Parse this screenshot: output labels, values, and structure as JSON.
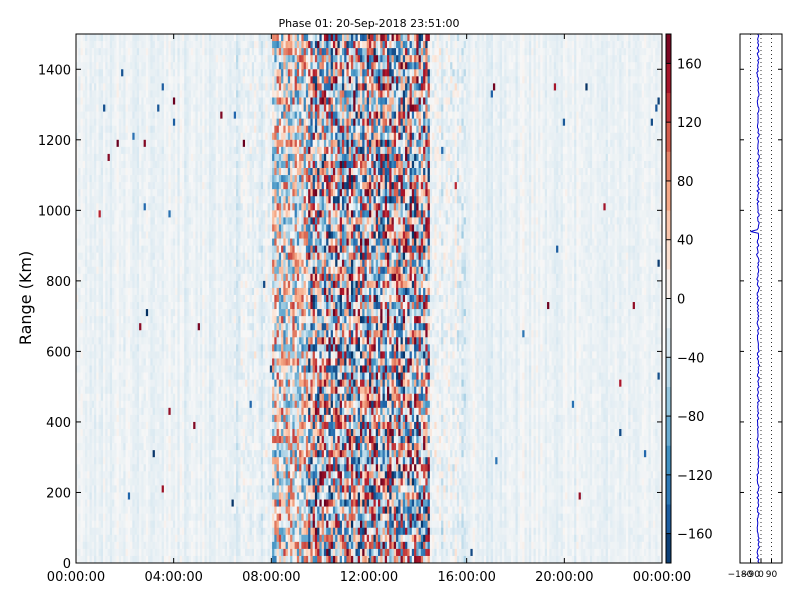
{
  "chart_data": [
    {
      "type": "heatmap",
      "title": "Phase 01: 20-Sep-2018 23:51:00",
      "ylabel": "Range (Km)",
      "xlabel": "",
      "x_ticks": [
        "00:00:00",
        "04:00:00",
        "08:00:00",
        "12:00:00",
        "16:00:00",
        "20:00:00",
        "00:00:00"
      ],
      "x_range_hours": [
        0,
        24
      ],
      "y_ticks": [
        0,
        200,
        400,
        600,
        800,
        1000,
        1200,
        1400
      ],
      "ylim": [
        0,
        1500
      ],
      "colorbar": {
        "range": [
          -180,
          180
        ],
        "ticks": [
          -160,
          -120,
          -80,
          -40,
          0,
          40,
          80,
          120,
          160
        ],
        "colormap": "RdBu_r",
        "colors": [
          "#053061",
          "#2166ac",
          "#4393c3",
          "#92c5de",
          "#d1e5f0",
          "#f7f7f7",
          "#fddbc7",
          "#f4a582",
          "#d6604d",
          "#b2182b",
          "#67001f"
        ]
      },
      "activity_profile": {
        "description_hours": [
          {
            "start": 0,
            "end": 6.5,
            "amplitude": 0.15
          },
          {
            "start": 6.5,
            "end": 8,
            "amplitude": 0.3
          },
          {
            "start": 8,
            "end": 9.5,
            "amplitude": 0.7
          },
          {
            "start": 9.5,
            "end": 14.5,
            "amplitude": 1.0
          },
          {
            "start": 14.5,
            "end": 16,
            "amplitude": 0.45
          },
          {
            "start": 16,
            "end": 24,
            "amplitude": 0.15
          }
        ]
      },
      "grid": false
    },
    {
      "type": "line",
      "title": "",
      "xlabel": "",
      "ylabel": "",
      "x_ticks": [
        "−180",
        "−90",
        "0",
        "90"
      ],
      "xlim": [
        -180,
        180
      ],
      "ylim": [
        0,
        1500
      ],
      "grid": true,
      "line_color": "#0000cc"
    }
  ]
}
